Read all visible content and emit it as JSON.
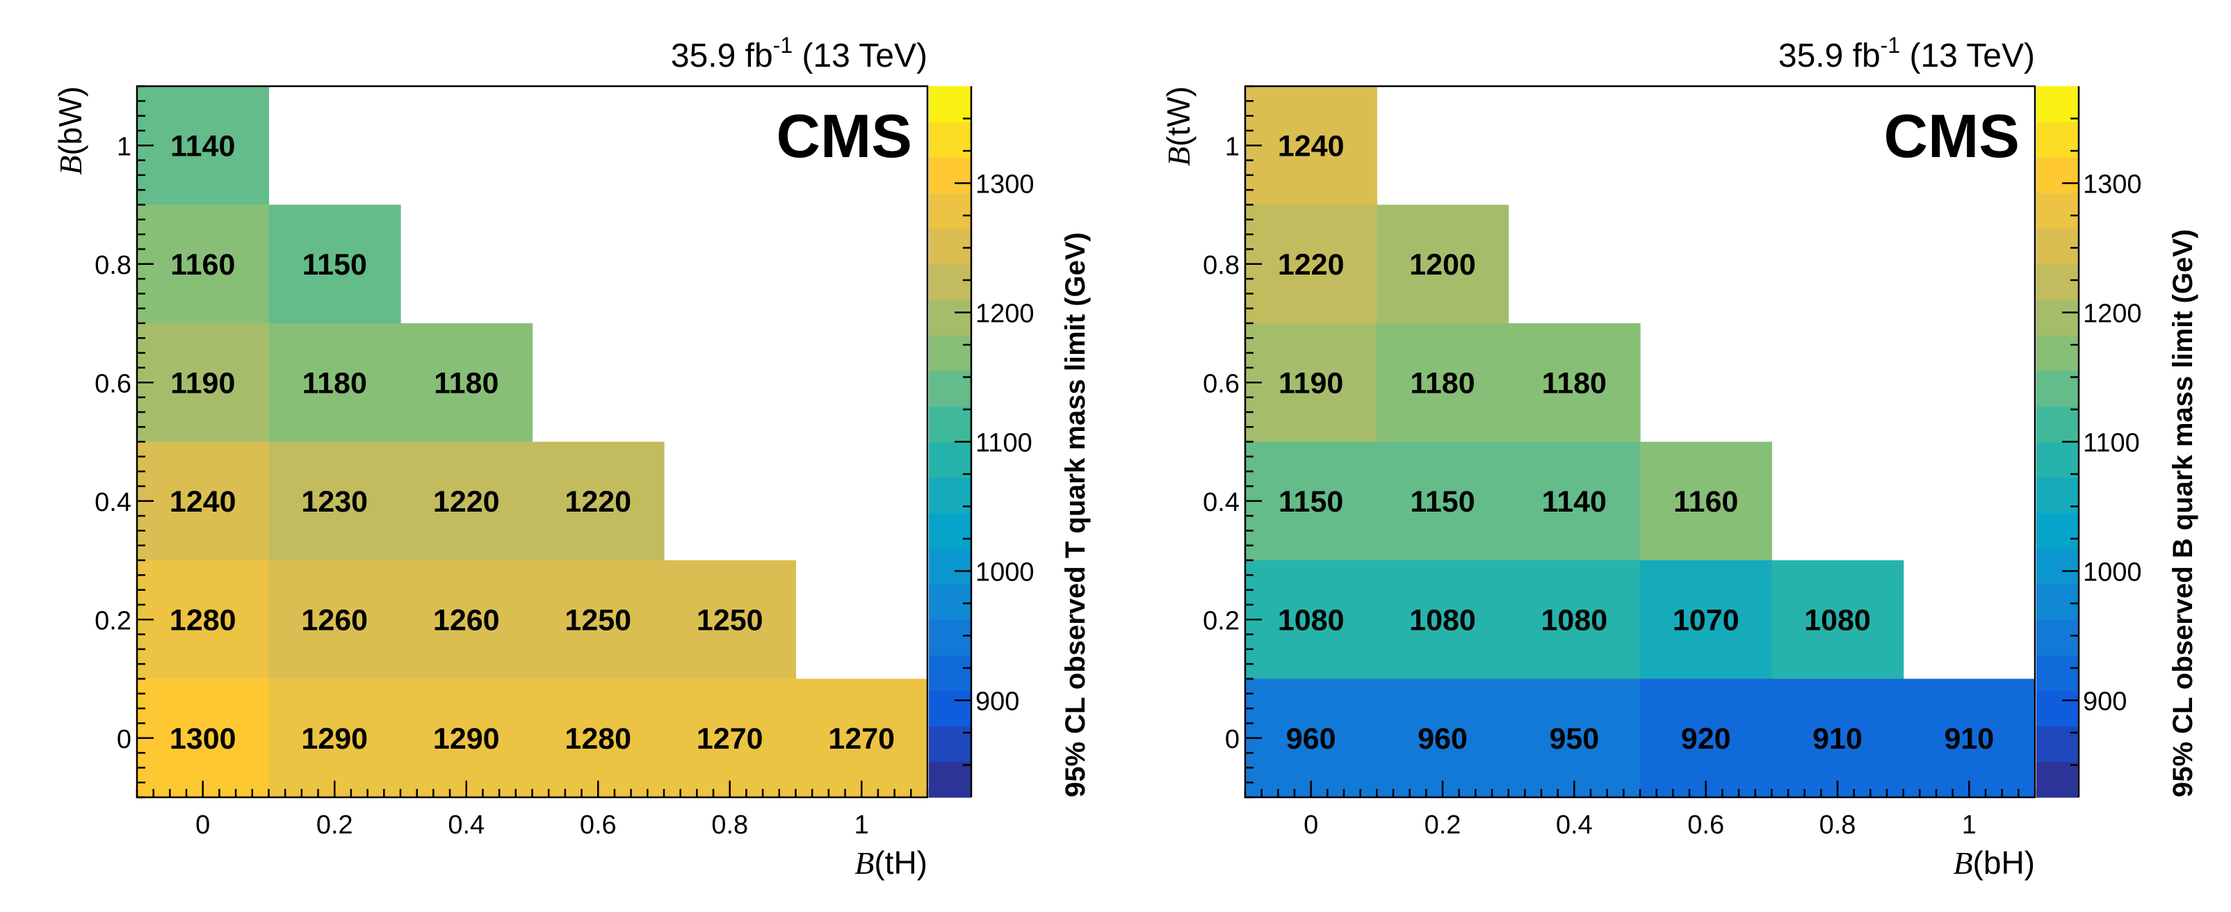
{
  "chart_data": [
    {
      "type": "heatmap",
      "lumi_label": "35.9 fb",
      "lumi_exp": "-1",
      "energy_label": "(13 TeV)",
      "experiment": "CMS",
      "xlabel_b": "B",
      "xlabel_rest": "(tH)",
      "ylabel_b": "B",
      "ylabel_rest": "(bW)",
      "zlabel": "95% CL observed T quark mass limit (GeV)",
      "xlim": [
        -0.1,
        1.1
      ],
      "ylim": [
        -0.1,
        1.1
      ],
      "zlim": [
        825,
        1375
      ],
      "x_ticks": [
        0,
        0.2,
        0.4,
        0.6,
        0.8,
        1
      ],
      "x_tick_labels": [
        "0",
        "0.2",
        "0.4",
        "0.6",
        "0.8",
        "1"
      ],
      "y_ticks": [
        0,
        0.2,
        0.4,
        0.6,
        0.8,
        1
      ],
      "y_tick_labels": [
        "0",
        "0.2",
        "0.4",
        "0.6",
        "0.8",
        "1"
      ],
      "z_ticks": [
        900,
        1000,
        1100,
        1200,
        1300
      ],
      "z_tick_labels": [
        "900",
        "1000",
        "1100",
        "1200",
        "1300"
      ],
      "cells": [
        {
          "x": 0.0,
          "y": 1.0,
          "value": 1140,
          "label": "1140"
        },
        {
          "x": 0.0,
          "y": 0.8,
          "value": 1160,
          "label": "1160"
        },
        {
          "x": 0.2,
          "y": 0.8,
          "value": 1150,
          "label": "1150"
        },
        {
          "x": 0.0,
          "y": 0.6,
          "value": 1190,
          "label": "1190"
        },
        {
          "x": 0.2,
          "y": 0.6,
          "value": 1180,
          "label": "1180"
        },
        {
          "x": 0.4,
          "y": 0.6,
          "value": 1180,
          "label": "1180"
        },
        {
          "x": 0.0,
          "y": 0.4,
          "value": 1240,
          "label": "1240"
        },
        {
          "x": 0.2,
          "y": 0.4,
          "value": 1230,
          "label": "1230"
        },
        {
          "x": 0.4,
          "y": 0.4,
          "value": 1220,
          "label": "1220"
        },
        {
          "x": 0.6,
          "y": 0.4,
          "value": 1220,
          "label": "1220"
        },
        {
          "x": 0.0,
          "y": 0.2,
          "value": 1280,
          "label": "1280"
        },
        {
          "x": 0.2,
          "y": 0.2,
          "value": 1260,
          "label": "1260"
        },
        {
          "x": 0.4,
          "y": 0.2,
          "value": 1260,
          "label": "1260"
        },
        {
          "x": 0.6,
          "y": 0.2,
          "value": 1250,
          "label": "1250"
        },
        {
          "x": 0.8,
          "y": 0.2,
          "value": 1250,
          "label": "1250"
        },
        {
          "x": 0.0,
          "y": 0.0,
          "value": 1300,
          "label": "1300"
        },
        {
          "x": 0.2,
          "y": 0.0,
          "value": 1290,
          "label": "1290"
        },
        {
          "x": 0.4,
          "y": 0.0,
          "value": 1290,
          "label": "1290"
        },
        {
          "x": 0.6,
          "y": 0.0,
          "value": 1280,
          "label": "1280"
        },
        {
          "x": 0.8,
          "y": 0.0,
          "value": 1270,
          "label": "1270"
        },
        {
          "x": 1.0,
          "y": 0.0,
          "value": 1270,
          "label": "1270"
        }
      ]
    },
    {
      "type": "heatmap",
      "lumi_label": "35.9 fb",
      "lumi_exp": "-1",
      "energy_label": "(13 TeV)",
      "experiment": "CMS",
      "xlabel_b": "B",
      "xlabel_rest": "(bH)",
      "ylabel_b": "B",
      "ylabel_rest": "(tW)",
      "zlabel": "95% CL observed B quark mass limit (GeV)",
      "xlim": [
        -0.1,
        1.1
      ],
      "ylim": [
        -0.1,
        1.1
      ],
      "zlim": [
        825,
        1375
      ],
      "x_ticks": [
        0,
        0.2,
        0.4,
        0.6,
        0.8,
        1
      ],
      "x_tick_labels": [
        "0",
        "0.2",
        "0.4",
        "0.6",
        "0.8",
        "1"
      ],
      "y_ticks": [
        0,
        0.2,
        0.4,
        0.6,
        0.8,
        1
      ],
      "y_tick_labels": [
        "0",
        "0.2",
        "0.4",
        "0.6",
        "0.8",
        "1"
      ],
      "z_ticks": [
        900,
        1000,
        1100,
        1200,
        1300
      ],
      "z_tick_labels": [
        "900",
        "1000",
        "1100",
        "1200",
        "1300"
      ],
      "cells": [
        {
          "x": 0.0,
          "y": 1.0,
          "value": 1240,
          "label": "1240"
        },
        {
          "x": 0.0,
          "y": 0.8,
          "value": 1220,
          "label": "1220"
        },
        {
          "x": 0.2,
          "y": 0.8,
          "value": 1200,
          "label": "1200"
        },
        {
          "x": 0.0,
          "y": 0.6,
          "value": 1190,
          "label": "1190"
        },
        {
          "x": 0.2,
          "y": 0.6,
          "value": 1180,
          "label": "1180"
        },
        {
          "x": 0.4,
          "y": 0.6,
          "value": 1180,
          "label": "1180"
        },
        {
          "x": 0.0,
          "y": 0.4,
          "value": 1150,
          "label": "1150"
        },
        {
          "x": 0.2,
          "y": 0.4,
          "value": 1150,
          "label": "1150"
        },
        {
          "x": 0.4,
          "y": 0.4,
          "value": 1140,
          "label": "1140"
        },
        {
          "x": 0.6,
          "y": 0.4,
          "value": 1160,
          "label": "1160"
        },
        {
          "x": 0.0,
          "y": 0.2,
          "value": 1080,
          "label": "1080"
        },
        {
          "x": 0.2,
          "y": 0.2,
          "value": 1080,
          "label": "1080"
        },
        {
          "x": 0.4,
          "y": 0.2,
          "value": 1080,
          "label": "1080"
        },
        {
          "x": 0.6,
          "y": 0.2,
          "value": 1070,
          "label": "1070"
        },
        {
          "x": 0.8,
          "y": 0.2,
          "value": 1080,
          "label": "1080"
        },
        {
          "x": 0.0,
          "y": 0.0,
          "value": 960,
          "label": "960"
        },
        {
          "x": 0.2,
          "y": 0.0,
          "value": 960,
          "label": "960"
        },
        {
          "x": 0.4,
          "y": 0.0,
          "value": 950,
          "label": "950"
        },
        {
          "x": 0.6,
          "y": 0.0,
          "value": 920,
          "label": "920"
        },
        {
          "x": 0.8,
          "y": 0.0,
          "value": 910,
          "label": "910"
        },
        {
          "x": 1.0,
          "y": 0.0,
          "value": 910,
          "label": "910"
        }
      ]
    }
  ]
}
